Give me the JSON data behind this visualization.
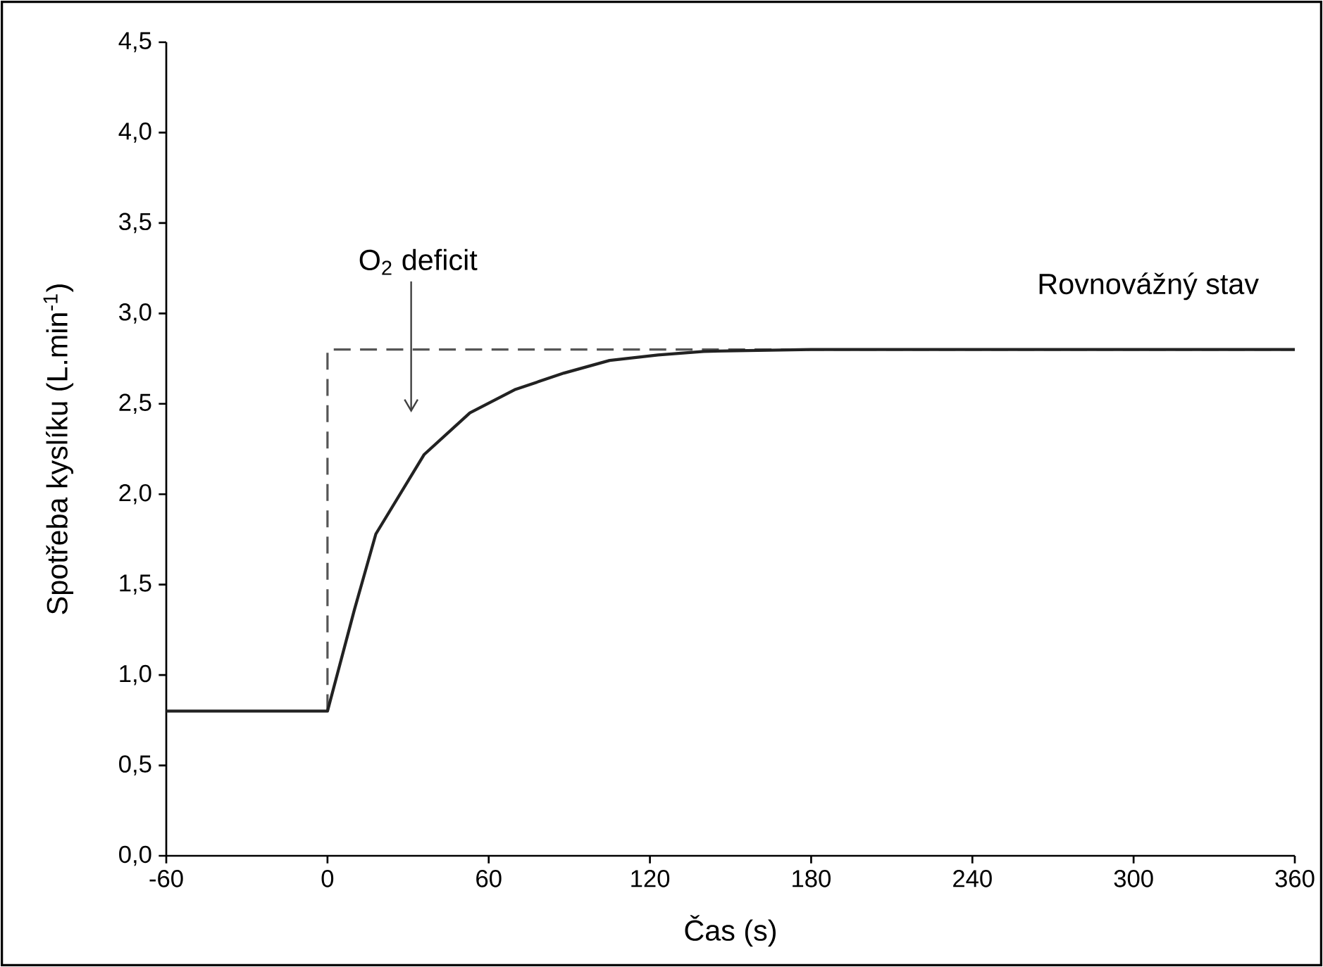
{
  "chart_data": {
    "type": "line",
    "xlabel": "Čas (s)",
    "ylabel": "Spotřeba kyslíku (L.min$^{-1}$)",
    "xlim": [
      -60,
      360
    ],
    "xticks": [
      -60,
      0,
      60,
      120,
      180,
      240,
      300,
      360
    ],
    "ylim": [
      0,
      4.5
    ],
    "yticks": [
      {
        "value": 0,
        "label": "0,0"
      },
      {
        "value": 0.5,
        "label": "0,5"
      },
      {
        "value": 1,
        "label": "1,0"
      },
      {
        "value": 1.5,
        "label": "1,5"
      },
      {
        "value": 2,
        "label": "2,0"
      },
      {
        "value": 2.5,
        "label": "2,5"
      },
      {
        "value": 3,
        "label": "3,0"
      },
      {
        "value": 3.5,
        "label": "3,5"
      },
      {
        "value": 4,
        "label": "4,0"
      },
      {
        "value": 4.5,
        "label": "4,5"
      }
    ],
    "marker": "none",
    "grid": false,
    "series": [
      {
        "color": "#555555",
        "line_style": "dashed",
        "x": [
          0,
          0,
          360
        ],
        "values": [
          0.8,
          2.8,
          2.8
        ]
      },
      {
        "color": "#222222",
        "line_style": "solid",
        "x": [
          -60,
          0,
          10,
          18,
          36,
          53,
          70,
          88,
          105,
          123,
          140,
          180,
          360
        ],
        "values": [
          0.8,
          0.8,
          1.36,
          1.78,
          2.22,
          2.45,
          2.58,
          2.67,
          2.74,
          2.77,
          2.79,
          2.8,
          2.8
        ]
      }
    ],
    "annotations": [
      "O$_{2}$ deficit",
      "Rovnovážný stav"
    ]
  }
}
